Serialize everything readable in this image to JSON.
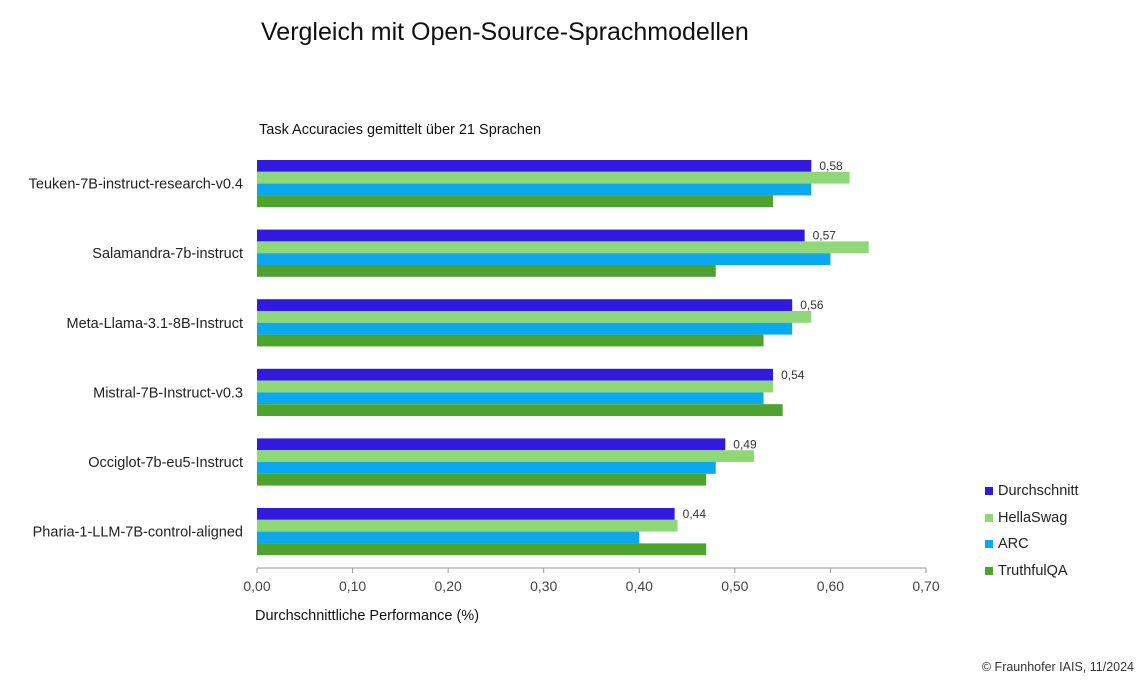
{
  "chart_data": {
    "type": "bar",
    "orientation": "horizontal",
    "title": "Vergleich mit Open-Source-Sprachmodellen",
    "subtitle": "Task Accuracies gemittelt über 21 Sprachen",
    "xlabel": "Durchschnittliche Performance (%)",
    "ylabel": "",
    "xlim": [
      0,
      0.7
    ],
    "x_ticks": [
      "0,00",
      "0,10",
      "0,20",
      "0,30",
      "0,40",
      "0,50",
      "0,60",
      "0,70"
    ],
    "grid": false,
    "legend_position": "right-bottom",
    "categories": [
      "Teuken-7B-instruct-research-v0.4",
      "Salamandra-7b-instruct",
      "Meta-Llama-3.1-8B-Instruct",
      "Mistral-7B-Instruct-v0.3",
      "Occiglot-7b-eu5-Instruct",
      "Pharia-1-LLM-7B-control-aligned"
    ],
    "series": [
      {
        "name": "Durchschnitt",
        "color": "#3219e0",
        "values": [
          0.58,
          0.573,
          0.56,
          0.54,
          0.49,
          0.437
        ],
        "labels": [
          "0,58",
          "0,57",
          "0,56",
          "0,54",
          "0,49",
          "0,44"
        ]
      },
      {
        "name": "HellaSwag",
        "color": "#8fd878",
        "values": [
          0.62,
          0.64,
          0.58,
          0.54,
          0.52,
          0.44
        ]
      },
      {
        "name": "ARC",
        "color": "#0aa8ef",
        "values": [
          0.58,
          0.6,
          0.56,
          0.53,
          0.48,
          0.4
        ]
      },
      {
        "name": "TruthfulQA",
        "color": "#4ea22e",
        "values": [
          0.54,
          0.48,
          0.53,
          0.55,
          0.47,
          0.47
        ]
      }
    ]
  },
  "footer": "© Fraunhofer IAIS, 11/2024"
}
